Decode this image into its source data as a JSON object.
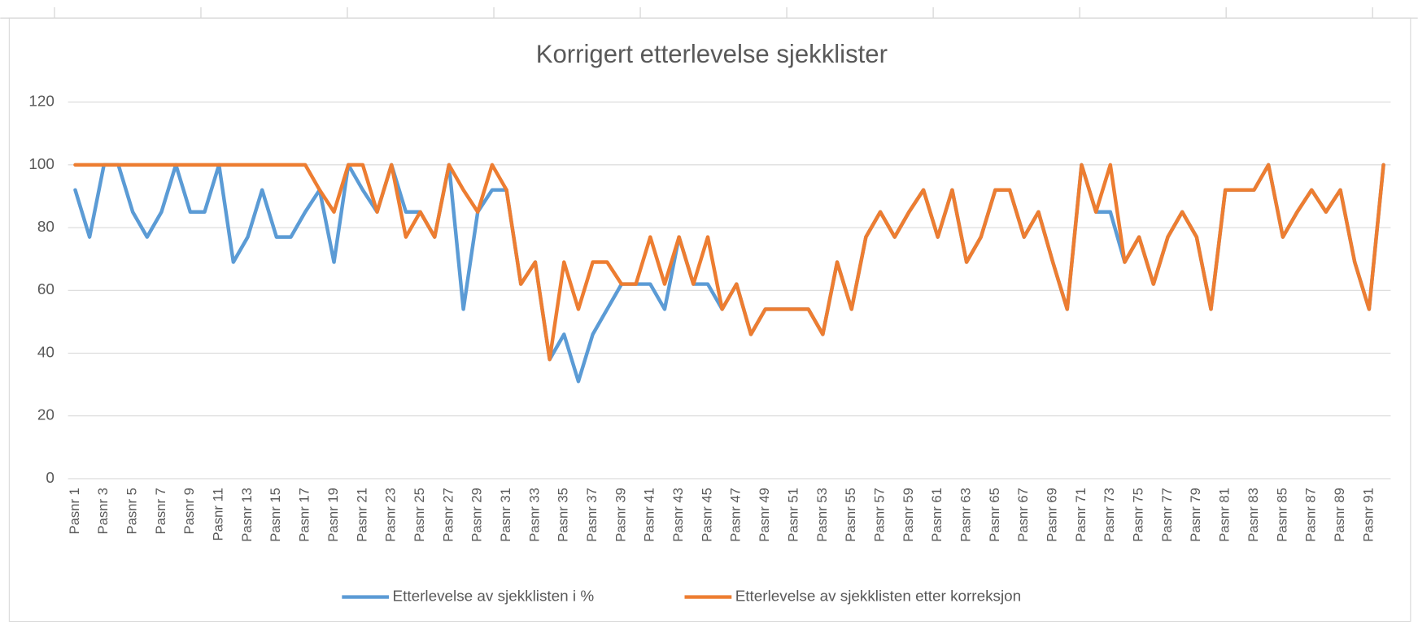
{
  "chart_data": {
    "type": "line",
    "title": "Korrigert  etterlevelse sjekklister",
    "categories": [
      "Pasnr 1",
      null,
      "Pasnr 3",
      null,
      "Pasnr 5",
      null,
      "Pasnr 7",
      null,
      "Pasnr 9",
      null,
      "Pasnr 11",
      null,
      "Pasnr 13",
      null,
      "Pasnr 15",
      null,
      "Pasnr 17",
      null,
      "Pasnr 19",
      null,
      "Pasnr 21",
      null,
      "Pasnr 23",
      null,
      "Pasnr 25",
      null,
      "Pasnr 27",
      null,
      "Pasnr 29",
      null,
      "Pasnr 31",
      null,
      "Pasnr 33",
      null,
      "Pasnr 35",
      null,
      "Pasnr 37",
      null,
      "Pasnr 39",
      null,
      "Pasnr 41",
      null,
      "Pasnr 43",
      null,
      "Pasnr 45",
      null,
      "Pasnr 47",
      null,
      "Pasnr 49",
      null,
      "Pasnr 51",
      null,
      "Pasnr 53",
      null,
      "Pasnr 55",
      null,
      "Pasnr 57",
      null,
      "Pasnr 59",
      null,
      "Pasnr 61",
      null,
      "Pasnr 63",
      null,
      "Pasnr 65",
      null,
      "Pasnr 67",
      null,
      "Pasnr 69",
      null,
      "Pasnr 71",
      null,
      "Pasnr 73",
      null,
      "Pasnr 75",
      null,
      "Pasnr 77",
      null,
      "Pasnr 79",
      null,
      "Pasnr 81",
      null,
      "Pasnr 83",
      null,
      "Pasnr 85",
      null,
      "Pasnr 87",
      null,
      "Pasnr 89",
      null,
      "Pasnr 91",
      null
    ],
    "series": [
      {
        "name": "Etterlevelse av sjekklisten i %",
        "color": "#5b9bd5",
        "values": [
          92,
          77,
          100,
          100,
          85,
          77,
          85,
          100,
          85,
          85,
          100,
          69,
          77,
          92,
          77,
          77,
          85,
          92,
          69,
          100,
          92,
          85,
          100,
          85,
          85,
          77,
          100,
          54,
          85,
          92,
          92,
          62,
          69,
          38,
          46,
          31,
          46,
          54,
          62,
          62,
          62,
          54,
          77,
          62,
          62,
          54,
          62,
          46,
          54,
          54,
          54,
          54,
          46,
          69,
          54,
          77,
          85,
          77,
          85,
          92,
          77,
          92,
          69,
          77,
          92,
          92,
          77,
          85,
          69,
          54,
          100,
          85,
          85,
          69,
          77,
          62,
          77,
          85,
          77,
          54,
          92,
          92,
          92,
          100,
          77,
          85,
          92,
          85,
          92,
          69,
          54,
          100
        ]
      },
      {
        "name": "Etterlevelse av sjekklisten etter korreksjon",
        "color": "#ed7d31",
        "values": [
          100,
          100,
          100,
          100,
          100,
          100,
          100,
          100,
          100,
          100,
          100,
          100,
          100,
          100,
          100,
          100,
          100,
          92,
          85,
          100,
          100,
          85,
          100,
          77,
          85,
          77,
          100,
          92,
          85,
          100,
          92,
          62,
          69,
          38,
          69,
          54,
          69,
          69,
          62,
          62,
          77,
          62,
          77,
          62,
          77,
          54,
          62,
          46,
          54,
          54,
          54,
          54,
          46,
          69,
          54,
          77,
          85,
          77,
          85,
          92,
          77,
          92,
          69,
          77,
          92,
          92,
          77,
          85,
          69,
          54,
          100,
          85,
          100,
          69,
          77,
          62,
          77,
          85,
          77,
          54,
          92,
          92,
          92,
          100,
          77,
          85,
          92,
          85,
          92,
          69,
          54,
          100
        ]
      }
    ],
    "ylim": [
      0,
      120
    ],
    "yticks": [
      0,
      20,
      40,
      60,
      80,
      100,
      120
    ],
    "grid": true,
    "legend": "bottom"
  }
}
